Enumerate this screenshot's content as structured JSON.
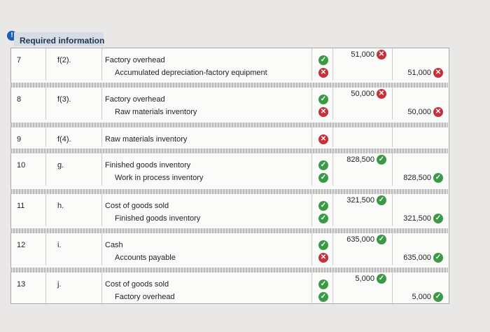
{
  "header": {
    "title": "Required information"
  },
  "entries": [
    {
      "no": "7",
      "ref": "f(2).",
      "lines": [
        {
          "account": "Factory overhead",
          "debit": "51,000"
        },
        {
          "account": "Accumulated depreciation-factory equipment",
          "credit": "51,000"
        }
      ]
    },
    {
      "no": "8",
      "ref": "f(3).",
      "lines": [
        {
          "account": "Factory overhead",
          "debit": "50,000"
        },
        {
          "account": "Raw materials inventory",
          "credit": "50,000"
        }
      ]
    },
    {
      "no": "9",
      "ref": "f(4).",
      "lines": [
        {
          "account": "Raw materials inventory"
        }
      ]
    },
    {
      "no": "10",
      "ref": "g.",
      "lines": [
        {
          "account": "Finished goods inventory",
          "debit": "828,500"
        },
        {
          "account": "Work in process inventory",
          "credit": "828,500"
        }
      ]
    },
    {
      "no": "11",
      "ref": "h.",
      "lines": [
        {
          "account": "Cost of goods sold",
          "debit": "321,500"
        },
        {
          "account": "Finished goods inventory",
          "credit": "321,500"
        }
      ]
    },
    {
      "no": "12",
      "ref": "i.",
      "lines": [
        {
          "account": "Cash",
          "debit": "635,000"
        },
        {
          "account": "Accounts payable",
          "credit": "635,000"
        }
      ]
    },
    {
      "no": "13",
      "ref": "j.",
      "lines": [
        {
          "account": "Cost of goods sold",
          "debit": "5,000"
        },
        {
          "account": "Factory overhead",
          "credit": "5,000"
        }
      ]
    }
  ]
}
